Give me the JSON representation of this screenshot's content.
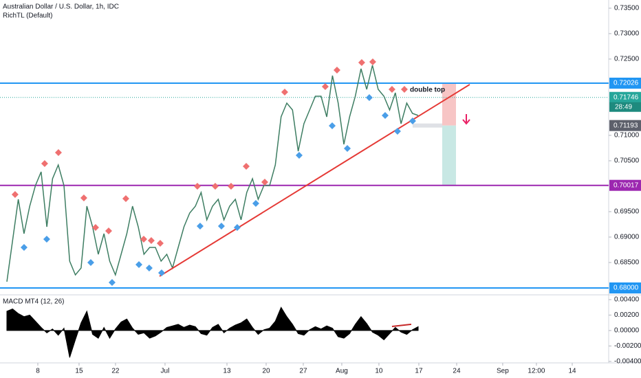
{
  "chart_data": [
    {
      "type": "line",
      "title": "Australian Dollar / U.S. Dollar, 1h, IDC",
      "subtitle": "RichTL (Default)",
      "color": "#3d7d62",
      "values": [
        0.68122,
        0.68932,
        0.69743,
        0.69067,
        0.69608,
        0.70013,
        0.70283,
        0.69202,
        0.70148,
        0.70418,
        0.70013,
        0.68527,
        0.68257,
        0.68392,
        0.69608,
        0.69202,
        0.68662,
        0.69067,
        0.68527,
        0.68257,
        0.68662,
        0.69067,
        0.69608,
        0.69202,
        0.68662,
        0.68797,
        0.68797,
        0.68527,
        0.68662,
        0.68392,
        0.68797,
        0.69202,
        0.69473,
        0.69608,
        0.69878,
        0.69338,
        0.69608,
        0.69743,
        0.69338,
        0.69608,
        0.69743,
        0.69338,
        0.69878,
        0.70148,
        0.69743,
        0.70013,
        0.70013,
        0.70418,
        0.71364,
        0.71634,
        0.71499,
        0.70689,
        0.71229,
        0.71499,
        0.71769,
        0.71769,
        0.71364,
        0.72175,
        0.71634,
        0.70824,
        0.71364,
        0.71769,
        0.7231,
        0.71904,
        0.72377,
        0.71904,
        0.71769,
        0.71499,
        0.71837,
        0.71229,
        0.71634,
        0.71432,
        0.71391
      ],
      "xlim": [
        -1.2,
        105.35
      ],
      "xticks": [
        {
          "value": 5.42,
          "label": "8"
        },
        {
          "value": 12.64,
          "label": "15"
        },
        {
          "value": 19.02,
          "label": "22"
        },
        {
          "value": 27.69,
          "label": "Jul"
        },
        {
          "value": 38.53,
          "label": "13"
        },
        {
          "value": 45.39,
          "label": "20"
        },
        {
          "value": 51.89,
          "label": "27"
        },
        {
          "value": 58.63,
          "label": "Aug"
        },
        {
          "value": 65.13,
          "label": "10"
        },
        {
          "value": 72.12,
          "label": "17"
        },
        {
          "value": 78.74,
          "label": "24"
        },
        {
          "value": 86.8,
          "label": "Sep"
        },
        {
          "value": 92.7,
          "label": "12:00"
        },
        {
          "value": 98.97,
          "label": "14"
        }
      ],
      "ylim": [
        0.67878,
        0.73661
      ],
      "yticks": [
        {
          "value": 0.735,
          "label": "0.73500"
        },
        {
          "value": 0.73,
          "label": "0.73000"
        },
        {
          "value": 0.725,
          "label": "0.72500"
        },
        {
          "value": 0.71,
          "label": "0.71000"
        },
        {
          "value": 0.705,
          "label": "0.70500"
        },
        {
          "value": 0.695,
          "label": "0.69500"
        },
        {
          "value": 0.69,
          "label": "0.69000"
        },
        {
          "value": 0.685,
          "label": "0.68500"
        }
      ],
      "grid": false,
      "levels": [
        {
          "value": 0.72026,
          "label": "0.72026",
          "color": "#2196f3"
        },
        {
          "value": 0.70017,
          "label": "0.70017",
          "color": "#9c27b0"
        },
        {
          "value": 0.68,
          "label": "0.68000",
          "color": "#2196f3"
        }
      ],
      "current_price": {
        "value": 0.71746,
        "label": "0.71746",
        "countdown": "28:49",
        "color": "#26a69a"
      },
      "entry_label": {
        "value": 0.71193,
        "label": "0.71193",
        "color": "#5d606b"
      },
      "position": {
        "entry": 0.71193,
        "stop": 0.72026,
        "target": 0.70017,
        "x_start": 71.03,
        "x_box": 76.21,
        "x_end": 78.62
      },
      "trendline": [
        [
          26.73,
          0.6823
        ],
        [
          81.03,
          0.72
        ]
      ],
      "trendline_color": "#e53935",
      "annotation": "double top",
      "pivot_high_color": "#ef7070",
      "pivot_low_color": "#4a9ee8",
      "pivots_high": [
        [
          1.44,
          0.69837
        ],
        [
          6.62,
          0.70445
        ],
        [
          9.03,
          0.70661
        ],
        [
          13.48,
          0.6977
        ],
        [
          15.53,
          0.69189
        ],
        [
          17.82,
          0.69121
        ],
        [
          20.83,
          0.69756
        ],
        [
          23.96,
          0.68959
        ],
        [
          25.28,
          0.68932
        ],
        [
          26.85,
          0.68878
        ],
        [
          33.35,
          0.69999
        ],
        [
          36.48,
          0.69999
        ],
        [
          39.25,
          0.69999
        ],
        [
          41.9,
          0.70391
        ],
        [
          45.15,
          0.70081
        ],
        [
          48.64,
          0.7185
        ],
        [
          55.74,
          0.71958
        ],
        [
          57.79,
          0.72283
        ],
        [
          62.12,
          0.72431
        ],
        [
          64.05,
          0.72445
        ],
        [
          67.42,
          0.71904
        ],
        [
          69.59,
          0.71904
        ]
      ],
      "pivots_low": [
        [
          3.01,
          0.68797
        ],
        [
          6.98,
          0.68959
        ],
        [
          14.69,
          0.685
        ],
        [
          18.42,
          0.68108
        ],
        [
          23.12,
          0.68459
        ],
        [
          24.92,
          0.68392
        ],
        [
          27.09,
          0.68297
        ],
        [
          33.83,
          0.69216
        ],
        [
          37.56,
          0.69216
        ],
        [
          40.33,
          0.69189
        ],
        [
          43.58,
          0.69662
        ],
        [
          51.17,
          0.70607
        ],
        [
          56.95,
          0.71188
        ],
        [
          59.6,
          0.70743
        ],
        [
          63.45,
          0.71742
        ],
        [
          66.22,
          0.71391
        ],
        [
          68.38,
          0.7108
        ],
        [
          71.03,
          0.71283
        ]
      ]
    },
    {
      "type": "area",
      "title": "MACD MT4 (12, 26)",
      "color": "#000000",
      "values": [
        0.0025,
        0.0028,
        0.0022,
        0.0018,
        0.002,
        0.0012,
        0.0004,
        -0.0003,
        0.0002,
        -0.0006,
        0.0003,
        -0.0035,
        -0.0012,
        0.001,
        0.0025,
        -0.0005,
        -0.001,
        0.0004,
        -0.001,
        0.0002,
        0.0011,
        0.0015,
        0.0003,
        -0.0005,
        -0.0003,
        -0.001,
        -0.0007,
        -0.0002,
        0.0004,
        0.0006,
        0.0008,
        0.0004,
        0.0007,
        0.0005,
        -0.0004,
        -0.0006,
        0.0004,
        0.0008,
        -0.0003,
        0.0003,
        0.0007,
        0.001,
        0.0015,
        0.0004,
        -0.0005,
        0.0001,
        0.0003,
        0.0012,
        0.003,
        0.0018,
        0.0008,
        -0.0004,
        -0.0006,
        0.0001,
        0.0005,
        0.0002,
        0.0006,
        0.0003,
        -0.0008,
        -0.001,
        -0.0004,
        0.0008,
        0.0018,
        0.0009,
        -0.0002,
        -0.0006,
        -0.0012,
        -0.0004,
        0.0004,
        -0.0002,
        -0.0005,
        0.0001,
        0.0005
      ],
      "ylim": [
        -0.00419,
        0.00453
      ],
      "yticks": [
        {
          "value": 0.004,
          "label": "0.00400"
        },
        {
          "value": 0.002,
          "label": "0.00200"
        },
        {
          "value": 0,
          "label": "0.00000"
        },
        {
          "value": -0.002,
          "label": "-0.00200"
        },
        {
          "value": -0.004,
          "label": "-0.00400"
        }
      ],
      "trendline": [
        [
          67.42,
          0.00053
        ],
        [
          70.79,
          0.0008
        ]
      ],
      "trendline_color": "#c62828"
    }
  ]
}
